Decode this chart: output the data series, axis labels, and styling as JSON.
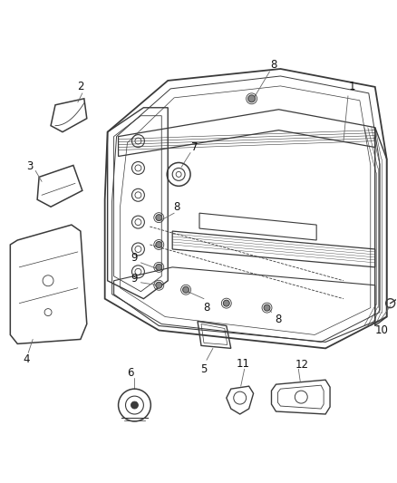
{
  "background_color": "#ffffff",
  "fig_width": 4.38,
  "fig_height": 5.33,
  "dpi": 100,
  "line_color": "#3a3a3a",
  "label_fontsize": 8.5
}
